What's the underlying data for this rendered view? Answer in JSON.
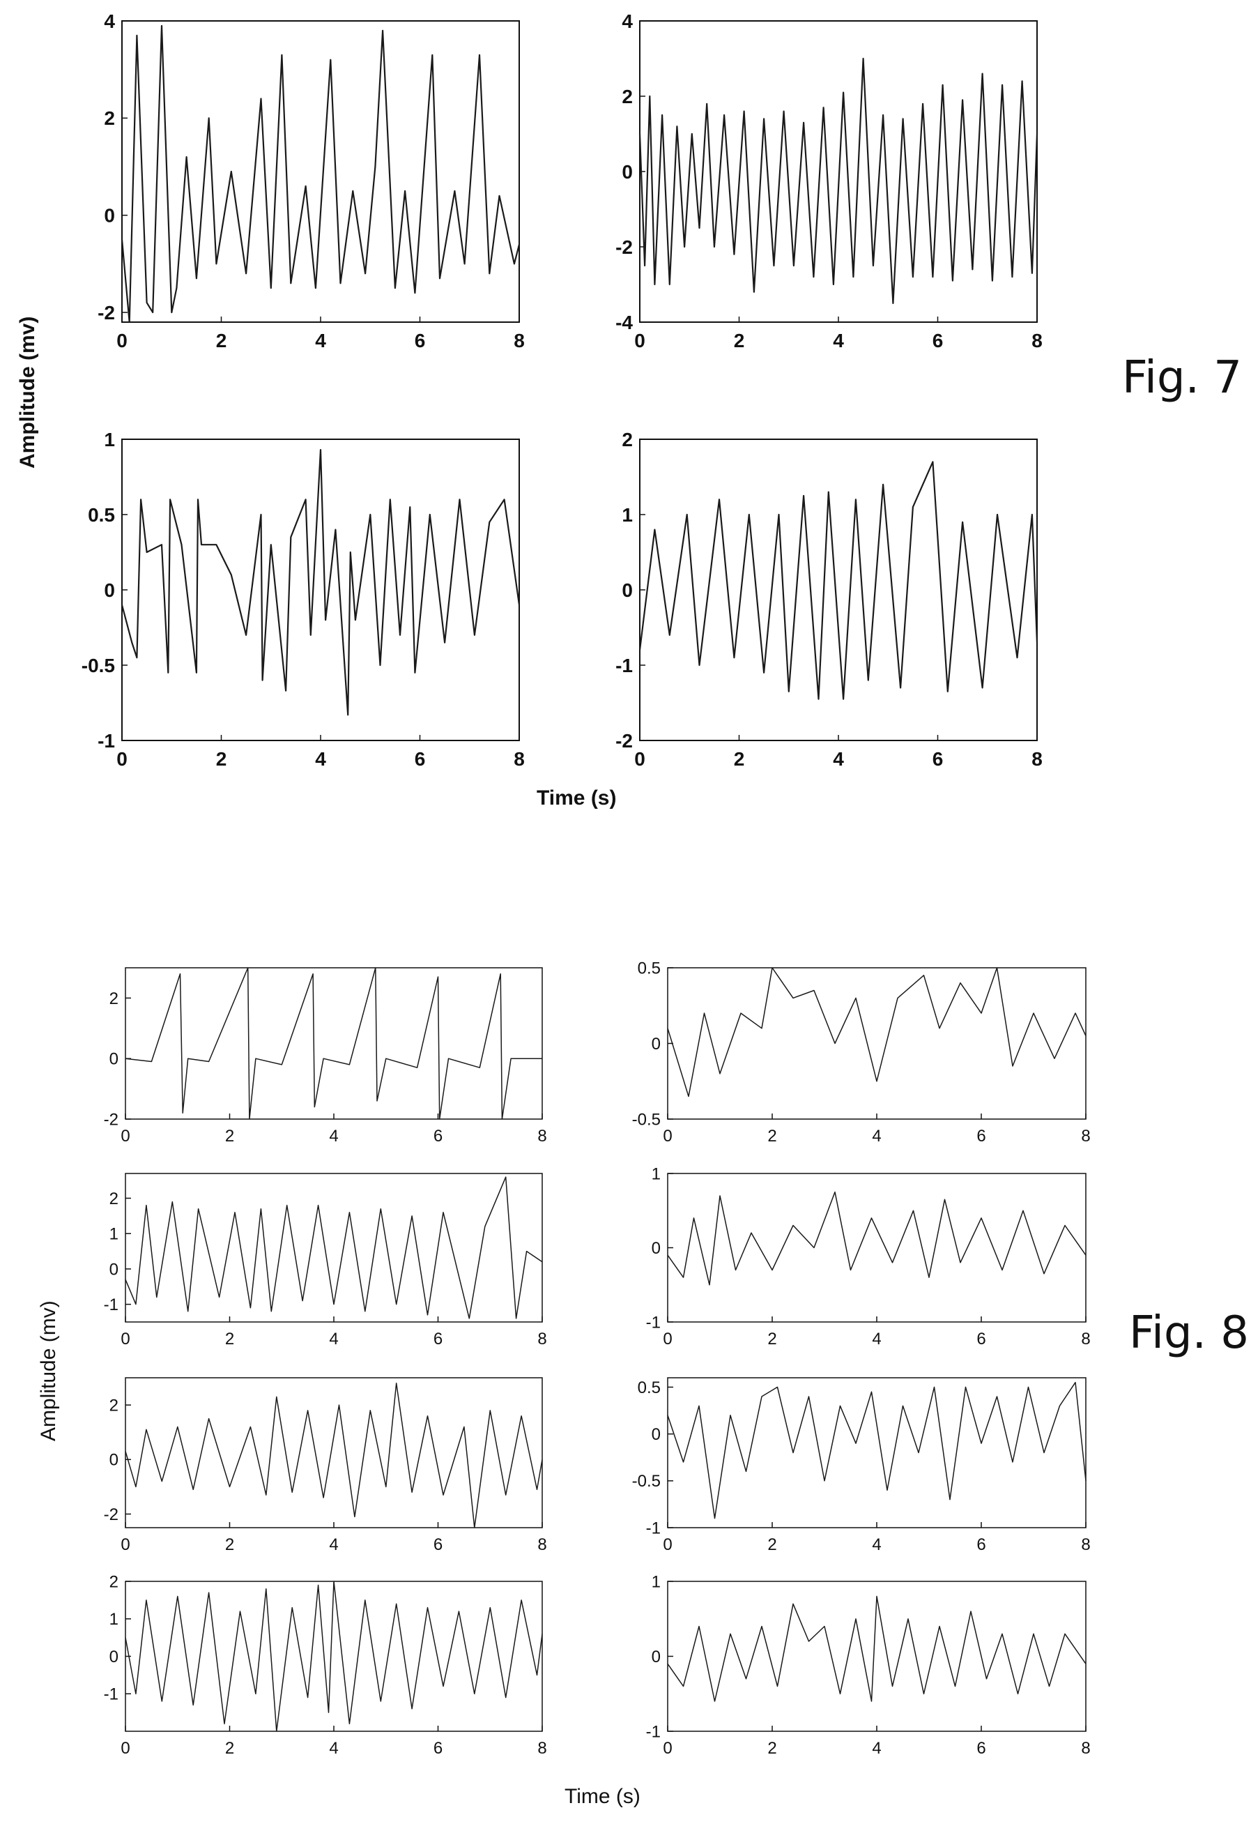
{
  "figures": [
    {
      "label": "Fig. 7",
      "ylabel": "Amplitude (mv)",
      "xlabel": "Time (s)"
    },
    {
      "label": "Fig. 8",
      "ylabel": "Amplitude (mv)",
      "xlabel": "Time (s)"
    }
  ],
  "colors": {
    "line": "#1a1a1a",
    "axes": "#111111",
    "background": "#ffffff"
  },
  "chart_data": [
    {
      "type": "line",
      "figure": "Fig. 7",
      "panel": "top-left",
      "xlim": [
        0,
        8
      ],
      "ylim": [
        -2.2,
        4
      ],
      "xticks": [
        "0",
        "2",
        "4",
        "6",
        "8"
      ],
      "yticks": [
        "-2",
        "0",
        "2",
        "4"
      ],
      "series": [
        {
          "x": [
            0,
            0.15,
            0.3,
            0.5,
            0.62,
            0.8,
            1.0,
            1.1,
            1.3,
            1.5,
            1.75,
            1.9,
            2.2,
            2.5,
            2.8,
            3.0,
            3.22,
            3.4,
            3.7,
            3.9,
            4.2,
            4.4,
            4.65,
            4.9,
            5.1,
            5.25,
            5.5,
            5.7,
            5.9,
            6.25,
            6.4,
            6.7,
            6.9,
            7.2,
            7.4,
            7.6,
            7.9,
            8.0
          ],
          "y": [
            -0.5,
            -2.2,
            3.7,
            -1.8,
            -2.0,
            3.9,
            -2.0,
            -1.5,
            1.2,
            -1.3,
            2.0,
            -1.0,
            0.9,
            -1.2,
            2.4,
            -1.5,
            3.3,
            -1.4,
            0.6,
            -1.5,
            3.2,
            -1.4,
            0.5,
            -1.2,
            1.0,
            3.8,
            -1.5,
            0.5,
            -1.6,
            3.3,
            -1.3,
            0.5,
            -1.0,
            3.3,
            -1.2,
            0.4,
            -1.0,
            -0.6
          ]
        }
      ]
    },
    {
      "type": "line",
      "figure": "Fig. 7",
      "panel": "top-right",
      "xlim": [
        0,
        8
      ],
      "ylim": [
        -4,
        4
      ],
      "xticks": [
        "0",
        "2",
        "4",
        "6",
        "8"
      ],
      "yticks": [
        "-4",
        "-2",
        "0",
        "2",
        "4"
      ],
      "series": [
        {
          "x": [
            0,
            0.1,
            0.2,
            0.3,
            0.45,
            0.6,
            0.75,
            0.9,
            1.05,
            1.2,
            1.35,
            1.5,
            1.7,
            1.9,
            2.1,
            2.3,
            2.5,
            2.7,
            2.9,
            3.1,
            3.3,
            3.5,
            3.7,
            3.9,
            4.1,
            4.3,
            4.5,
            4.7,
            4.9,
            5.1,
            5.3,
            5.5,
            5.7,
            5.9,
            6.1,
            6.3,
            6.5,
            6.7,
            6.9,
            7.1,
            7.3,
            7.5,
            7.7,
            7.9,
            8.0
          ],
          "y": [
            1.0,
            -2.5,
            2.0,
            -3.0,
            1.5,
            -3.0,
            1.2,
            -2.0,
            1.0,
            -1.5,
            1.8,
            -2.0,
            1.5,
            -2.2,
            1.6,
            -3.2,
            1.4,
            -2.5,
            1.6,
            -2.5,
            1.3,
            -2.8,
            1.7,
            -3.0,
            2.1,
            -2.8,
            3.0,
            -2.5,
            1.5,
            -3.5,
            1.4,
            -2.8,
            1.8,
            -2.8,
            2.3,
            -2.9,
            1.9,
            -2.6,
            2.6,
            -2.9,
            2.3,
            -2.8,
            2.4,
            -2.7,
            1.0
          ]
        }
      ]
    },
    {
      "type": "line",
      "figure": "Fig. 7",
      "panel": "bottom-left",
      "xlim": [
        0,
        8
      ],
      "ylim": [
        -1,
        1
      ],
      "xticks": [
        "0",
        "2",
        "4",
        "6",
        "8"
      ],
      "yticks": [
        "-1",
        "-0.5",
        "0",
        "0.5",
        "1"
      ],
      "series": [
        {
          "x": [
            0,
            0.2,
            0.3,
            0.38,
            0.5,
            0.8,
            0.93,
            0.97,
            1.2,
            1.5,
            1.53,
            1.6,
            1.9,
            2.2,
            2.5,
            2.8,
            2.83,
            3.0,
            3.3,
            3.4,
            3.7,
            3.8,
            4.0,
            4.1,
            4.3,
            4.55,
            4.6,
            4.7,
            5.0,
            5.2,
            5.4,
            5.6,
            5.8,
            5.9,
            6.2,
            6.5,
            6.8,
            7.1,
            7.4,
            7.7,
            8.0
          ],
          "y": [
            -0.1,
            -0.35,
            -0.45,
            0.6,
            0.25,
            0.3,
            -0.55,
            0.6,
            0.3,
            -0.55,
            0.6,
            0.3,
            0.3,
            0.1,
            -0.3,
            0.5,
            -0.6,
            0.3,
            -0.67,
            0.35,
            0.6,
            -0.3,
            0.93,
            -0.2,
            0.4,
            -0.83,
            0.25,
            -0.2,
            0.5,
            -0.5,
            0.6,
            -0.3,
            0.55,
            -0.55,
            0.5,
            -0.35,
            0.6,
            -0.3,
            0.45,
            0.6,
            -0.1
          ]
        }
      ]
    },
    {
      "type": "line",
      "figure": "Fig. 7",
      "panel": "bottom-right",
      "xlim": [
        0,
        8
      ],
      "ylim": [
        -2,
        2
      ],
      "xticks": [
        "0",
        "2",
        "4",
        "6",
        "8"
      ],
      "yticks": [
        "-2",
        "-1",
        "0",
        "1",
        "2"
      ],
      "series": [
        {
          "x": [
            0,
            0.3,
            0.6,
            0.95,
            1.2,
            1.6,
            1.9,
            2.2,
            2.5,
            2.8,
            3.0,
            3.3,
            3.6,
            3.8,
            4.1,
            4.35,
            4.6,
            4.9,
            5.25,
            5.5,
            5.9,
            6.2,
            6.5,
            6.9,
            7.2,
            7.6,
            7.9,
            8.0
          ],
          "y": [
            -0.8,
            0.8,
            -0.6,
            1.0,
            -1.0,
            1.2,
            -0.9,
            1.0,
            -1.1,
            1.0,
            -1.35,
            1.25,
            -1.45,
            1.3,
            -1.45,
            1.2,
            -1.2,
            1.4,
            -1.3,
            1.1,
            1.7,
            -1.35,
            0.9,
            -1.3,
            1.0,
            -0.9,
            1.0,
            -0.7
          ]
        }
      ]
    },
    {
      "type": "line",
      "figure": "Fig. 8",
      "panel": "row1-left",
      "xlim": [
        0,
        8
      ],
      "ylim": [
        -2,
        3
      ],
      "xticks": [
        "0",
        "2",
        "4",
        "6",
        "8"
      ],
      "yticks": [
        "-2",
        "0",
        "2"
      ],
      "series": [
        {
          "x": [
            0,
            0.5,
            1.05,
            1.1,
            1.2,
            1.6,
            2.35,
            2.38,
            2.5,
            3.0,
            3.6,
            3.63,
            3.8,
            4.3,
            4.8,
            4.83,
            5.0,
            5.6,
            6.0,
            6.03,
            6.2,
            6.8,
            7.2,
            7.23,
            7.4,
            8.0
          ],
          "y": [
            0,
            -0.1,
            2.8,
            -1.8,
            0,
            -0.1,
            3.0,
            -2.0,
            0,
            -0.2,
            2.8,
            -1.6,
            0,
            -0.2,
            3.0,
            -1.4,
            0,
            -0.3,
            2.7,
            -2.0,
            0,
            -0.3,
            2.8,
            -2.0,
            0,
            0
          ]
        }
      ]
    },
    {
      "type": "line",
      "figure": "Fig. 8",
      "panel": "row1-right",
      "xlim": [
        0,
        8
      ],
      "ylim": [
        -0.5,
        0.5
      ],
      "xticks": [
        "0",
        "2",
        "4",
        "6",
        "8"
      ],
      "yticks": [
        "-0.5",
        "0",
        "0.5"
      ],
      "series": [
        {
          "x": [
            0,
            0.4,
            0.7,
            1.0,
            1.4,
            1.8,
            2.0,
            2.4,
            2.8,
            3.2,
            3.6,
            4.0,
            4.4,
            4.9,
            5.2,
            5.6,
            6.0,
            6.3,
            6.6,
            7.0,
            7.4,
            7.8,
            8.0
          ],
          "y": [
            0.1,
            -0.35,
            0.2,
            -0.2,
            0.2,
            0.1,
            0.5,
            0.3,
            0.35,
            0.0,
            0.3,
            -0.25,
            0.3,
            0.45,
            0.1,
            0.4,
            0.2,
            0.5,
            -0.15,
            0.2,
            -0.1,
            0.2,
            0.05
          ]
        }
      ]
    },
    {
      "type": "line",
      "figure": "Fig. 8",
      "panel": "row2-left",
      "xlim": [
        0,
        8
      ],
      "ylim": [
        -1.5,
        2.7
      ],
      "xticks": [
        "0",
        "2",
        "4",
        "6",
        "8"
      ],
      "yticks": [
        "-1",
        "0",
        "1",
        "2"
      ],
      "series": [
        {
          "x": [
            0,
            0.2,
            0.4,
            0.6,
            0.9,
            1.2,
            1.4,
            1.8,
            2.1,
            2.4,
            2.6,
            2.8,
            3.1,
            3.4,
            3.7,
            4.0,
            4.3,
            4.6,
            4.9,
            5.2,
            5.5,
            5.8,
            6.1,
            6.6,
            6.9,
            7.3,
            7.5,
            7.7,
            8.0
          ],
          "y": [
            -0.3,
            -1.0,
            1.8,
            -0.8,
            1.9,
            -1.2,
            1.7,
            -0.8,
            1.6,
            -1.1,
            1.7,
            -1.2,
            1.8,
            -0.9,
            1.8,
            -1.0,
            1.6,
            -1.2,
            1.7,
            -1.0,
            1.5,
            -1.3,
            1.6,
            -1.4,
            1.2,
            2.6,
            -1.4,
            0.5,
            0.2
          ]
        }
      ]
    },
    {
      "type": "line",
      "figure": "Fig. 8",
      "panel": "row2-right",
      "xlim": [
        0,
        8
      ],
      "ylim": [
        -1,
        1
      ],
      "xticks": [
        "0",
        "2",
        "4",
        "6",
        "8"
      ],
      "yticks": [
        "-1",
        "0",
        "1"
      ],
      "series": [
        {
          "x": [
            0,
            0.3,
            0.5,
            0.8,
            1.0,
            1.3,
            1.6,
            2.0,
            2.4,
            2.8,
            3.2,
            3.5,
            3.9,
            4.3,
            4.7,
            5.0,
            5.3,
            5.6,
            6.0,
            6.4,
            6.8,
            7.2,
            7.6,
            8.0
          ],
          "y": [
            -0.1,
            -0.4,
            0.4,
            -0.5,
            0.7,
            -0.3,
            0.2,
            -0.3,
            0.3,
            0.0,
            0.75,
            -0.3,
            0.4,
            -0.2,
            0.5,
            -0.4,
            0.65,
            -0.2,
            0.4,
            -0.3,
            0.5,
            -0.35,
            0.3,
            -0.1
          ]
        }
      ]
    },
    {
      "type": "line",
      "figure": "Fig. 8",
      "panel": "row3-left",
      "xlim": [
        0,
        8
      ],
      "ylim": [
        -2.5,
        3
      ],
      "xticks": [
        "0",
        "2",
        "4",
        "6",
        "8"
      ],
      "yticks": [
        "-2",
        "0",
        "2"
      ],
      "series": [
        {
          "x": [
            0,
            0.2,
            0.4,
            0.7,
            1.0,
            1.3,
            1.6,
            2.0,
            2.4,
            2.7,
            2.9,
            3.2,
            3.5,
            3.8,
            4.1,
            4.4,
            4.7,
            5.0,
            5.2,
            5.5,
            5.8,
            6.1,
            6.5,
            6.7,
            7.0,
            7.3,
            7.6,
            7.9,
            8.0
          ],
          "y": [
            0.3,
            -1.0,
            1.1,
            -0.8,
            1.2,
            -1.1,
            1.5,
            -1.0,
            1.2,
            -1.3,
            2.3,
            -1.2,
            1.8,
            -1.4,
            2.0,
            -2.1,
            1.8,
            -1.0,
            2.8,
            -1.2,
            1.6,
            -1.3,
            1.2,
            -2.5,
            1.8,
            -1.3,
            1.6,
            -1.1,
            0.0
          ]
        }
      ]
    },
    {
      "type": "line",
      "figure": "Fig. 8",
      "panel": "row3-right",
      "xlim": [
        0,
        8
      ],
      "ylim": [
        -1,
        0.6
      ],
      "xticks": [
        "0",
        "2",
        "4",
        "6",
        "8"
      ],
      "yticks": [
        "-1",
        "-0.5",
        "0",
        "0.5"
      ],
      "series": [
        {
          "x": [
            0,
            0.3,
            0.6,
            0.9,
            1.2,
            1.5,
            1.8,
            2.1,
            2.4,
            2.7,
            3.0,
            3.3,
            3.6,
            3.9,
            4.2,
            4.5,
            4.8,
            5.1,
            5.4,
            5.7,
            6.0,
            6.3,
            6.6,
            6.9,
            7.2,
            7.5,
            7.8,
            8.0
          ],
          "y": [
            0.2,
            -0.3,
            0.3,
            -0.9,
            0.2,
            -0.4,
            0.4,
            0.5,
            -0.2,
            0.4,
            -0.5,
            0.3,
            -0.1,
            0.45,
            -0.6,
            0.3,
            -0.2,
            0.5,
            -0.7,
            0.5,
            -0.1,
            0.4,
            -0.3,
            0.5,
            -0.2,
            0.3,
            0.55,
            -0.5
          ]
        }
      ]
    },
    {
      "type": "line",
      "figure": "Fig. 8",
      "panel": "row4-left",
      "xlim": [
        0,
        8
      ],
      "ylim": [
        -2,
        2
      ],
      "xticks": [
        "0",
        "2",
        "4",
        "6",
        "8"
      ],
      "yticks": [
        "-1",
        "0",
        "1",
        "2"
      ],
      "series": [
        {
          "x": [
            0,
            0.2,
            0.4,
            0.7,
            1.0,
            1.3,
            1.6,
            1.9,
            2.2,
            2.5,
            2.7,
            2.9,
            3.2,
            3.5,
            3.7,
            3.9,
            4.0,
            4.3,
            4.6,
            4.9,
            5.2,
            5.5,
            5.8,
            6.1,
            6.4,
            6.7,
            7.0,
            7.3,
            7.6,
            7.9,
            8.0
          ],
          "y": [
            0.5,
            -1.0,
            1.5,
            -1.2,
            1.6,
            -1.3,
            1.7,
            -1.8,
            1.2,
            -1.0,
            1.8,
            -2.0,
            1.3,
            -1.1,
            1.9,
            -1.5,
            2.0,
            -1.8,
            1.5,
            -1.2,
            1.4,
            -1.4,
            1.3,
            -0.8,
            1.2,
            -1.0,
            1.3,
            -1.1,
            1.5,
            -0.5,
            0.6
          ]
        }
      ]
    },
    {
      "type": "line",
      "figure": "Fig. 8",
      "panel": "row4-right",
      "xlim": [
        0,
        8
      ],
      "ylim": [
        -1,
        1
      ],
      "xticks": [
        "0",
        "2",
        "4",
        "6",
        "8"
      ],
      "yticks": [
        "-1",
        "0",
        "1"
      ],
      "series": [
        {
          "x": [
            0,
            0.3,
            0.6,
            0.9,
            1.2,
            1.5,
            1.8,
            2.1,
            2.4,
            2.7,
            3.0,
            3.3,
            3.6,
            3.9,
            4.0,
            4.3,
            4.6,
            4.9,
            5.2,
            5.5,
            5.8,
            6.1,
            6.4,
            6.7,
            7.0,
            7.3,
            7.6,
            8.0
          ],
          "y": [
            -0.1,
            -0.4,
            0.4,
            -0.6,
            0.3,
            -0.3,
            0.4,
            -0.4,
            0.7,
            0.2,
            0.4,
            -0.5,
            0.5,
            -0.6,
            0.8,
            -0.4,
            0.5,
            -0.5,
            0.4,
            -0.4,
            0.6,
            -0.3,
            0.3,
            -0.5,
            0.3,
            -0.4,
            0.3,
            -0.1
          ]
        }
      ]
    }
  ]
}
